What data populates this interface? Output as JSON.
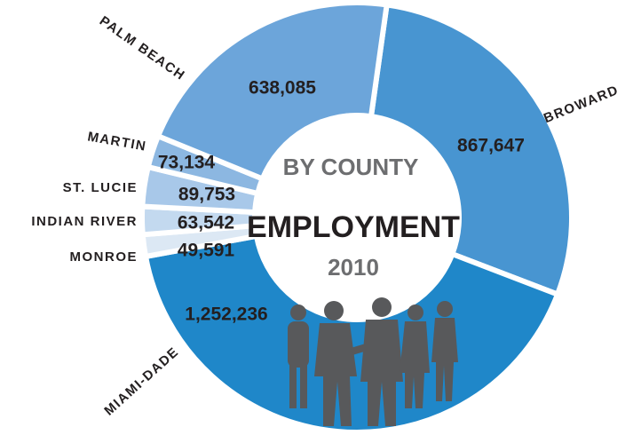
{
  "chart_data": {
    "type": "pie",
    "donut": true,
    "title": "EMPLOYMENT",
    "subtitle": "BY COUNTY",
    "annotation": "2010",
    "categories": [
      "BROWARD",
      "MIAMI-DADE",
      "MONROE",
      "INDIAN RIVER",
      "ST. LUCIE",
      "MARTIN",
      "PALM BEACH"
    ],
    "values": [
      867647,
      1252236,
      49591,
      63542,
      89753,
      73134,
      638085
    ],
    "value_labels": [
      "867,647",
      "1,252,236",
      "49,591",
      "63,542",
      "89,753",
      "73,134",
      "638,085"
    ],
    "colors": [
      "#4895d1",
      "#1f87c9",
      "#dce8f4",
      "#c3d9ef",
      "#a8c8e9",
      "#8cb7e1",
      "#6ca5da"
    ]
  }
}
